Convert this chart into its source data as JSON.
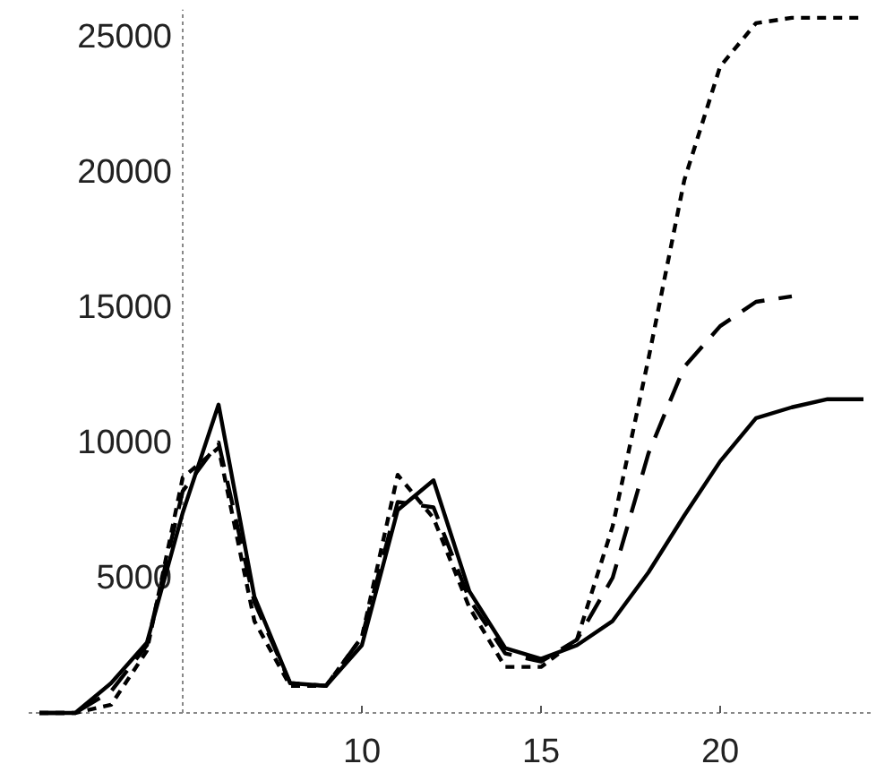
{
  "chart_data": {
    "type": "line",
    "x": [
      1,
      2,
      3,
      4,
      5,
      6,
      7,
      8,
      9,
      10,
      11,
      12,
      13,
      14,
      15,
      16,
      17,
      18,
      19,
      20,
      21,
      22,
      23,
      24
    ],
    "xlim": [
      0.7,
      24.3
    ],
    "grid": false,
    "marker": "none",
    "ref_lines": [
      {
        "axis": "x",
        "value": 5,
        "color": "#888888",
        "line_style": "dotted"
      }
    ],
    "ylim": [
      0,
      26000
    ],
    "xticks": [
      10,
      15,
      20
    ],
    "yticks": [
      5000,
      10000,
      15000,
      20000,
      25000
    ],
    "series": [
      {
        "color": "#000000",
        "line_style": "solid",
        "values": [
          0,
          0,
          1100,
          2600,
          7400,
          11400,
          4300,
          1100,
          1000,
          2500,
          7500,
          8600,
          4500,
          2400,
          2000,
          2500,
          3400,
          5200,
          7300,
          9300,
          10900,
          11300,
          11600,
          11600
        ]
      },
      {
        "color": "#000000",
        "line_style": "dashed",
        "values": [
          0,
          0,
          800,
          2500,
          8200,
          10000,
          4100,
          1100,
          1000,
          2800,
          7800,
          7600,
          4200,
          2200,
          1900,
          2700,
          5000,
          9600,
          12800,
          14300,
          15200,
          15400,
          null,
          null
        ]
      },
      {
        "color": "#000000",
        "line_style": "dotted",
        "values": [
          0,
          0,
          300,
          2300,
          8700,
          9800,
          3400,
          1000,
          1000,
          2800,
          8800,
          7200,
          3900,
          1700,
          1700,
          2700,
          6900,
          13100,
          19700,
          23900,
          25500,
          25700,
          25700,
          25700
        ]
      }
    ]
  }
}
